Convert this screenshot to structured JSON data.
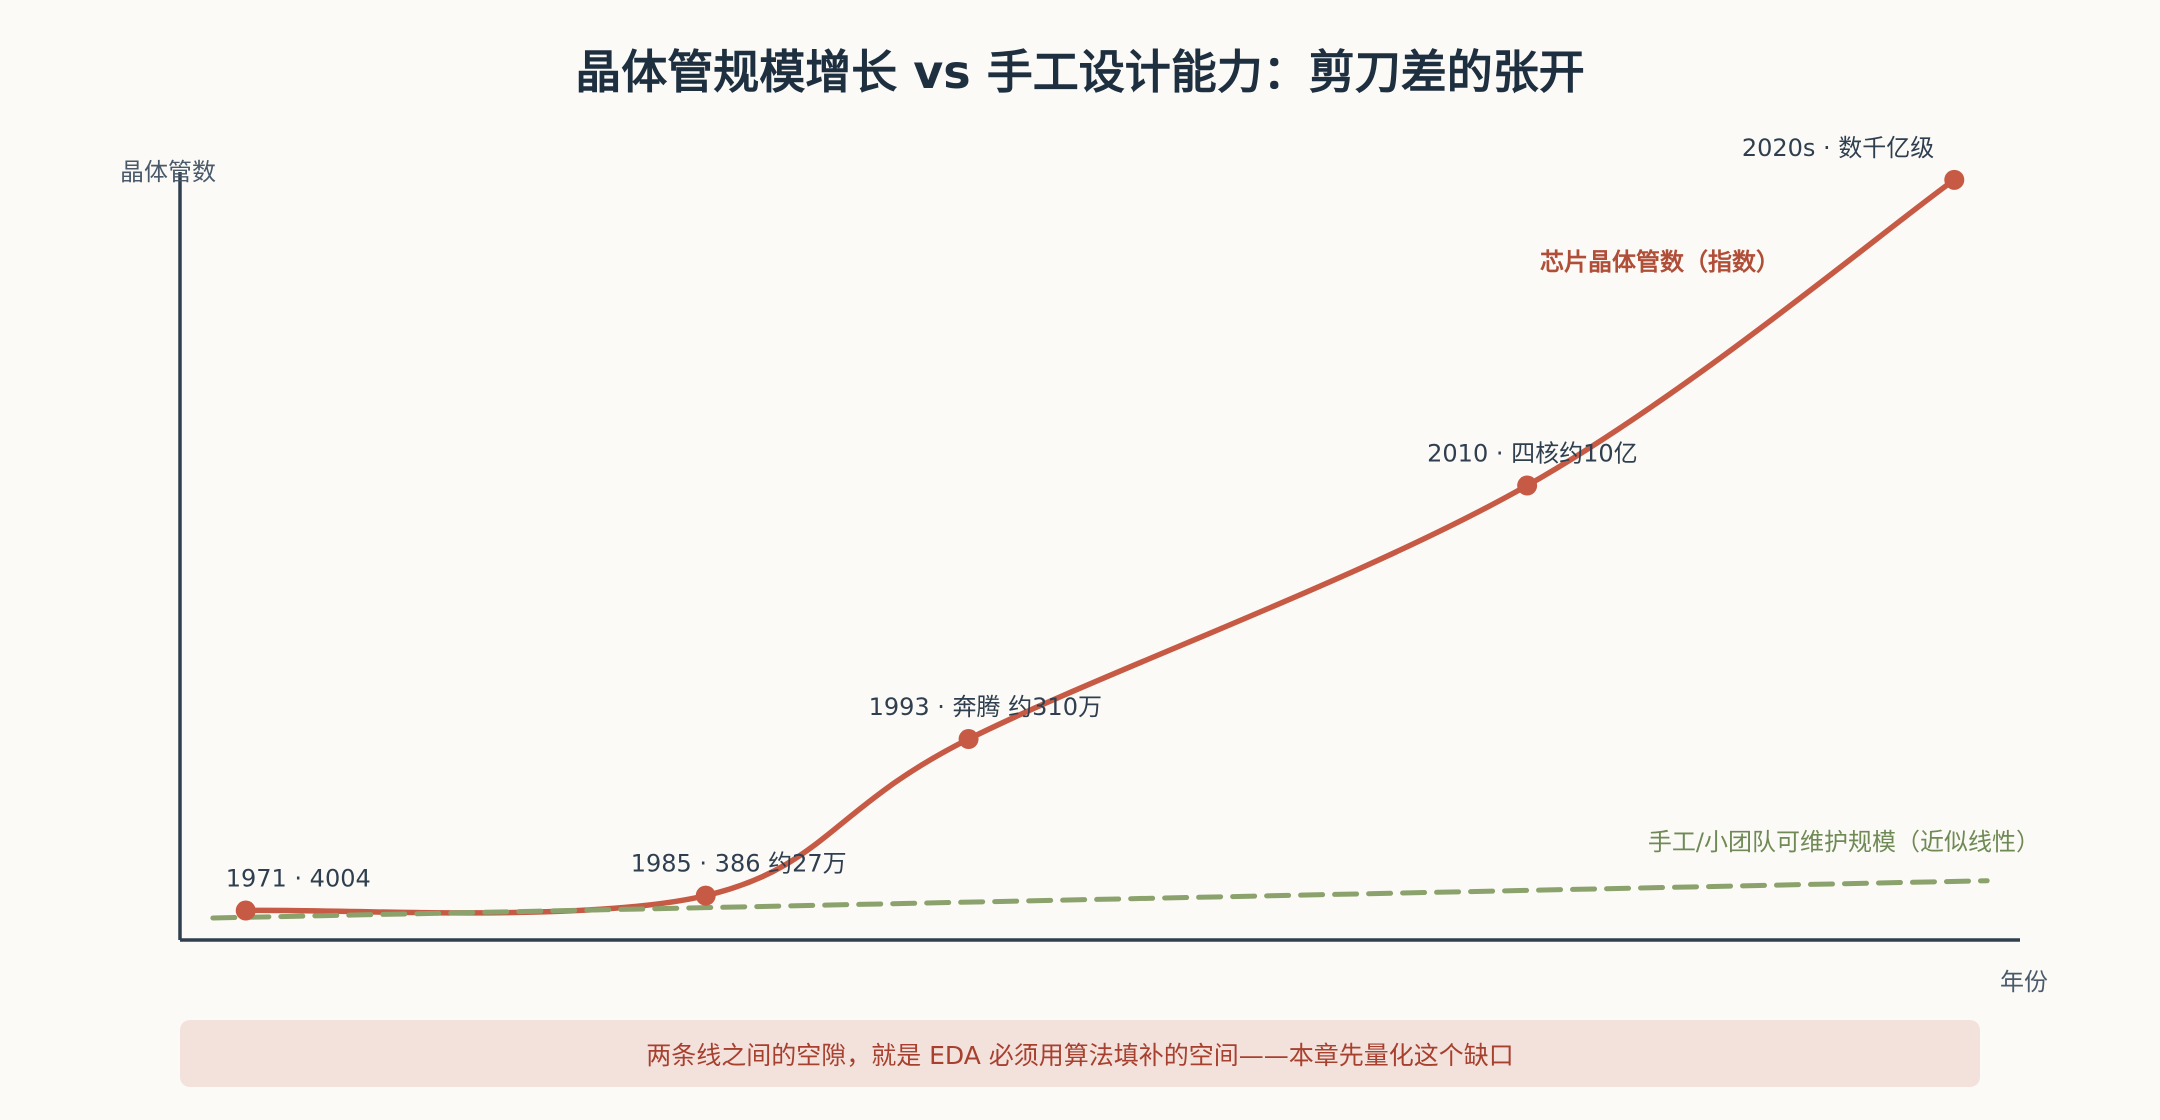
{
  "chart_data": {
    "type": "line",
    "title": "晶体管规模增长 vs 手工设计能力：剪刀差的张开",
    "ylabel": "晶体管数",
    "xlabel": "年份",
    "grid": false,
    "series": [
      {
        "name": "芯片晶体管数（指数）",
        "color": "#c65a44",
        "style": "solid",
        "points": [
          {
            "x": 1971,
            "y": 0.01,
            "label": "1971 · 4004"
          },
          {
            "x": 1985,
            "y": 0.03,
            "label": "1985 · 386 约27万"
          },
          {
            "x": 1993,
            "y": 0.24,
            "label": "1993 · 奔腾 约310万"
          },
          {
            "x": 2010,
            "y": 0.58,
            "label": "2010 · 四核约10亿"
          },
          {
            "x": 2023,
            "y": 0.99,
            "label": "2020s · 数千亿级"
          }
        ]
      },
      {
        "name": "手工/小团队可维护规模（近似线性）",
        "color": "#8ba26c",
        "style": "dashed",
        "points": [
          {
            "x": 1970,
            "y": 0.0
          },
          {
            "x": 2024,
            "y": 0.05
          }
        ]
      }
    ]
  },
  "footer_note": "两条线之间的空隙，就是 EDA 必须用算法填补的空间——本章先量化这个缺口"
}
